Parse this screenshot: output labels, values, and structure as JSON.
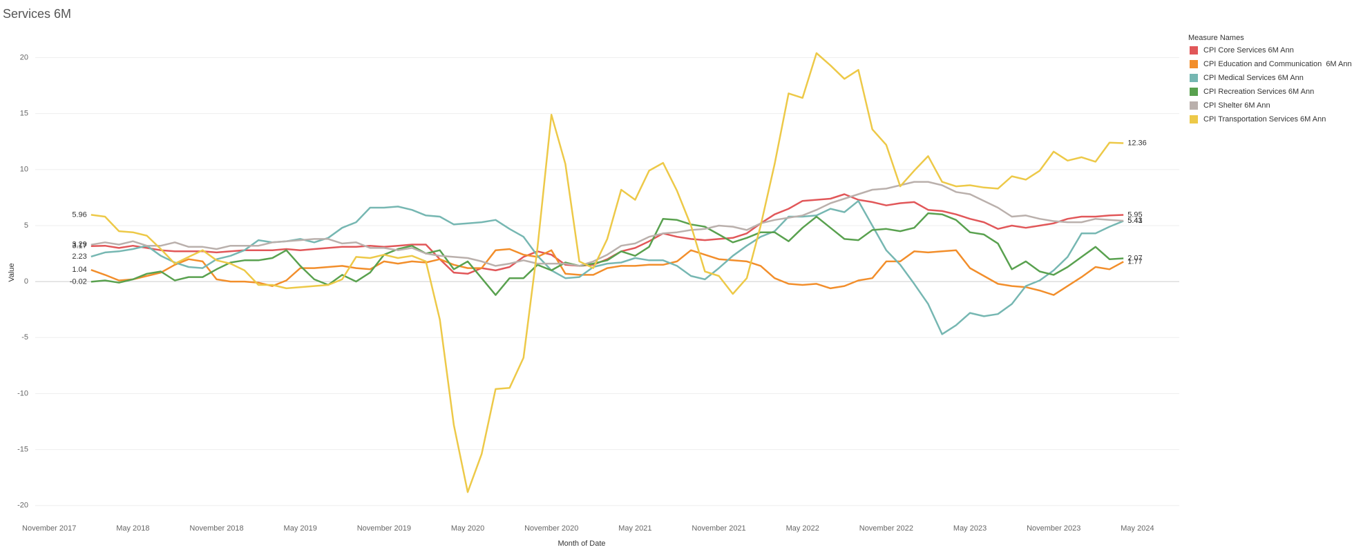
{
  "chart_data": {
    "type": "line",
    "title": "Services 6M",
    "x_label": "Month of Date",
    "y_label": "Value",
    "legend_title": "Measure Names",
    "x": [
      "2018-02",
      "2018-03",
      "2018-04",
      "2018-05",
      "2018-06",
      "2018-07",
      "2018-08",
      "2018-09",
      "2018-10",
      "2018-11",
      "2018-12",
      "2019-01",
      "2019-02",
      "2019-03",
      "2019-04",
      "2019-05",
      "2019-06",
      "2019-07",
      "2019-08",
      "2019-09",
      "2019-10",
      "2019-11",
      "2019-12",
      "2020-01",
      "2020-02",
      "2020-03",
      "2020-04",
      "2020-05",
      "2020-06",
      "2020-07",
      "2020-08",
      "2020-09",
      "2020-10",
      "2020-11",
      "2020-12",
      "2021-01",
      "2021-02",
      "2021-03",
      "2021-04",
      "2021-05",
      "2021-06",
      "2021-07",
      "2021-08",
      "2021-09",
      "2021-10",
      "2021-11",
      "2021-12",
      "2022-01",
      "2022-02",
      "2022-03",
      "2022-04",
      "2022-05",
      "2022-06",
      "2022-07",
      "2022-08",
      "2022-09",
      "2022-10",
      "2022-11",
      "2022-12",
      "2023-01",
      "2023-02",
      "2023-03",
      "2023-04",
      "2023-05",
      "2023-06",
      "2023-07",
      "2023-08",
      "2023-09",
      "2023-10",
      "2023-11",
      "2023-12",
      "2024-01",
      "2024-02",
      "2024-03",
      "2024-04"
    ],
    "xlim": [
      "2017-10",
      "2024-08"
    ],
    "xticks": [
      {
        "value": "2017-11",
        "label": "November 2017"
      },
      {
        "value": "2018-05",
        "label": "May 2018"
      },
      {
        "value": "2018-11",
        "label": "November 2018"
      },
      {
        "value": "2019-05",
        "label": "May 2019"
      },
      {
        "value": "2019-11",
        "label": "November 2019"
      },
      {
        "value": "2020-05",
        "label": "May 2020"
      },
      {
        "value": "2020-11",
        "label": "November 2020"
      },
      {
        "value": "2021-05",
        "label": "May 2021"
      },
      {
        "value": "2021-11",
        "label": "November 2021"
      },
      {
        "value": "2022-05",
        "label": "May 2022"
      },
      {
        "value": "2022-11",
        "label": "November 2022"
      },
      {
        "value": "2023-05",
        "label": "May 2023"
      },
      {
        "value": "2023-11",
        "label": "November 2023"
      },
      {
        "value": "2024-05",
        "label": "May 2024"
      }
    ],
    "ylim": [
      -21,
      22
    ],
    "yticks": [
      -20,
      -15,
      -10,
      -5,
      0,
      5,
      10,
      15,
      20
    ],
    "grid": true,
    "series": [
      {
        "name": "CPI Core Services 6M Ann",
        "color": "#e15759",
        "values": [
          3.17,
          3.2,
          3.0,
          3.2,
          3.0,
          2.8,
          2.7,
          2.7,
          2.7,
          2.6,
          2.7,
          2.8,
          2.8,
          2.8,
          2.9,
          2.8,
          2.9,
          3.0,
          3.1,
          3.1,
          3.2,
          3.1,
          3.2,
          3.3,
          3.3,
          2.0,
          0.8,
          0.7,
          1.2,
          1.0,
          1.3,
          2.2,
          2.7,
          2.4,
          1.5,
          1.4,
          1.5,
          2.0,
          2.7,
          3.0,
          3.6,
          4.3,
          4.0,
          3.8,
          3.7,
          3.8,
          3.9,
          4.3,
          5.2,
          6.0,
          6.5,
          7.2,
          7.3,
          7.4,
          7.8,
          7.3,
          7.1,
          6.8,
          7.0,
          7.1,
          6.4,
          6.3,
          6.0,
          5.6,
          5.3,
          4.7,
          5.0,
          4.8,
          5.0,
          5.2,
          5.6,
          5.8,
          5.8,
          5.9,
          5.95
        ]
      },
      {
        "name": "CPI Education and Communication  6M Ann",
        "color": "#f28e2b",
        "values": [
          1.04,
          0.6,
          0.1,
          0.2,
          0.5,
          0.8,
          1.5,
          2.0,
          1.8,
          0.2,
          0.0,
          0.0,
          -0.1,
          -0.4,
          0.1,
          1.2,
          1.2,
          1.3,
          1.4,
          1.2,
          1.1,
          1.8,
          1.6,
          1.8,
          1.7,
          2.0,
          1.5,
          1.2,
          1.2,
          2.8,
          2.9,
          2.4,
          2.2,
          2.8,
          0.7,
          0.6,
          0.6,
          1.2,
          1.4,
          1.4,
          1.5,
          1.5,
          1.8,
          2.8,
          2.4,
          2.0,
          1.9,
          1.8,
          1.4,
          0.3,
          -0.2,
          -0.3,
          -0.2,
          -0.6,
          -0.4,
          0.1,
          0.3,
          1.8,
          1.8,
          2.7,
          2.6,
          2.7,
          2.8,
          1.2,
          0.5,
          -0.2,
          -0.4,
          -0.5,
          -0.8,
          -1.2,
          -0.4,
          0.4,
          1.3,
          1.1,
          1.77
        ]
      },
      {
        "name": "CPI Medical Services 6M Ann",
        "color": "#76b7b2",
        "values": [
          2.23,
          2.6,
          2.7,
          2.9,
          3.2,
          2.3,
          1.7,
          1.3,
          1.2,
          2.0,
          2.3,
          2.8,
          3.7,
          3.5,
          3.6,
          3.8,
          3.5,
          3.9,
          4.8,
          5.3,
          6.6,
          6.6,
          6.7,
          6.4,
          5.9,
          5.8,
          5.1,
          5.2,
          5.3,
          5.5,
          4.7,
          4.0,
          2.3,
          1.0,
          0.3,
          0.4,
          1.3,
          1.6,
          1.7,
          2.1,
          1.9,
          1.9,
          1.4,
          0.5,
          0.2,
          1.2,
          2.3,
          3.2,
          4.0,
          4.5,
          5.8,
          5.8,
          5.9,
          6.5,
          6.2,
          7.2,
          5.0,
          2.8,
          1.5,
          -0.2,
          -2.0,
          -4.7,
          -3.9,
          -2.8,
          -3.1,
          -2.9,
          -2.0,
          -0.4,
          0.1,
          1.0,
          2.2,
          4.3,
          4.3,
          4.9,
          5.41
        ]
      },
      {
        "name": "CPI Recreation Services 6M Ann",
        "color": "#59a14f",
        "values": [
          -0.02,
          0.1,
          -0.1,
          0.2,
          0.7,
          0.9,
          0.1,
          0.4,
          0.4,
          1.1,
          1.7,
          1.9,
          1.9,
          2.1,
          2.8,
          1.4,
          0.2,
          -0.3,
          0.6,
          0.0,
          0.8,
          2.4,
          2.9,
          3.2,
          2.5,
          2.8,
          1.1,
          1.8,
          0.3,
          -1.2,
          0.3,
          0.3,
          1.5,
          1.0,
          1.7,
          1.4,
          1.6,
          1.9,
          2.7,
          2.3,
          3.1,
          5.6,
          5.5,
          5.1,
          4.9,
          4.2,
          3.5,
          3.9,
          4.4,
          4.4,
          3.6,
          4.8,
          5.8,
          4.8,
          3.8,
          3.7,
          4.6,
          4.7,
          4.5,
          4.8,
          6.1,
          6.0,
          5.5,
          4.4,
          4.2,
          3.4,
          1.1,
          1.8,
          0.9,
          0.6,
          1.3,
          2.2,
          3.1,
          2.0,
          2.07
        ]
      },
      {
        "name": "CPI Shelter 6M Ann",
        "color": "#bab0ac",
        "values": [
          3.29,
          3.5,
          3.3,
          3.6,
          3.2,
          3.2,
          3.5,
          3.1,
          3.1,
          2.9,
          3.2,
          3.2,
          3.2,
          3.5,
          3.6,
          3.7,
          3.8,
          3.8,
          3.4,
          3.5,
          3.0,
          3.0,
          2.8,
          3.0,
          2.5,
          2.3,
          2.2,
          2.1,
          1.8,
          1.4,
          1.6,
          1.9,
          1.6,
          1.6,
          1.6,
          1.4,
          1.8,
          2.4,
          3.2,
          3.4,
          4.0,
          4.3,
          4.4,
          4.6,
          4.7,
          5.0,
          4.9,
          4.6,
          5.2,
          5.5,
          5.7,
          5.9,
          6.4,
          7.0,
          7.4,
          7.8,
          8.2,
          8.3,
          8.6,
          8.9,
          8.9,
          8.6,
          8.0,
          7.8,
          7.2,
          6.6,
          5.8,
          5.9,
          5.6,
          5.4,
          5.3,
          5.3,
          5.6,
          5.5,
          5.43
        ]
      },
      {
        "name": "CPI Transportation Services 6M Ann",
        "color": "#edc948",
        "values": [
          5.96,
          5.8,
          4.5,
          4.4,
          4.1,
          2.9,
          1.6,
          2.2,
          2.8,
          1.9,
          1.6,
          1.0,
          -0.3,
          -0.3,
          -0.6,
          -0.5,
          -0.4,
          -0.3,
          0.2,
          2.2,
          2.1,
          2.4,
          2.1,
          2.3,
          1.8,
          -3.4,
          -12.8,
          -18.8,
          -15.4,
          -9.6,
          -9.5,
          -6.8,
          3.0,
          14.9,
          10.5,
          1.8,
          1.2,
          3.8,
          8.2,
          7.3,
          9.9,
          10.6,
          8.1,
          5.0,
          0.9,
          0.5,
          -1.1,
          0.3,
          5.0,
          10.5,
          16.8,
          16.4,
          20.4,
          19.3,
          18.1,
          18.9,
          13.6,
          12.2,
          8.5,
          9.9,
          11.2,
          8.9,
          8.5,
          8.6,
          8.4,
          8.3,
          9.4,
          9.1,
          9.9,
          11.6,
          10.8,
          11.1,
          10.7,
          12.4,
          12.36
        ]
      }
    ]
  }
}
